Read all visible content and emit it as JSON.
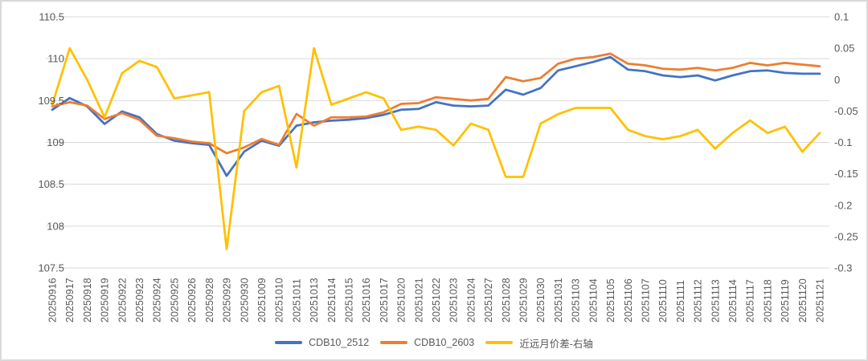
{
  "chart_data": {
    "type": "line",
    "categories": [
      "20250916",
      "20250917",
      "20250918",
      "20250919",
      "20250922",
      "20250923",
      "20250924",
      "20250925",
      "20250926",
      "20250928",
      "20250929",
      "20250930",
      "20251009",
      "20251010",
      "20251011",
      "20251013",
      "20251014",
      "20251015",
      "20251016",
      "20251017",
      "20251020",
      "20251021",
      "20251022",
      "20251023",
      "20251024",
      "20251027",
      "20251028",
      "20251029",
      "20251030",
      "20251031",
      "20251103",
      "20251104",
      "20251105",
      "20251106",
      "20251107",
      "20251110",
      "20251111",
      "20251112",
      "20251113",
      "20251114",
      "20251117",
      "20251118",
      "20251119",
      "20251120",
      "20251121"
    ],
    "series": [
      {
        "name": "CDB10_2512",
        "axis": "left",
        "color": "#4472C4",
        "values": [
          109.39,
          109.53,
          109.43,
          109.22,
          109.37,
          109.3,
          109.1,
          109.02,
          108.99,
          108.97,
          108.6,
          108.89,
          109.02,
          108.96,
          109.2,
          109.24,
          109.26,
          109.27,
          109.29,
          109.33,
          109.39,
          109.4,
          109.48,
          109.44,
          109.43,
          109.44,
          109.63,
          109.57,
          109.65,
          109.86,
          109.91,
          109.96,
          110.02,
          109.87,
          109.85,
          109.8,
          109.78,
          109.8,
          109.74,
          109.8,
          109.85,
          109.86,
          109.83,
          109.82,
          109.82
        ]
      },
      {
        "name": "CDB10_2603",
        "axis": "left",
        "color": "#ED7D31",
        "values": [
          109.43,
          109.48,
          109.44,
          109.28,
          109.35,
          109.27,
          109.08,
          109.05,
          109.01,
          108.99,
          108.87,
          108.94,
          109.04,
          108.97,
          109.34,
          109.2,
          109.3,
          109.3,
          109.31,
          109.36,
          109.46,
          109.47,
          109.54,
          109.52,
          109.5,
          109.52,
          109.78,
          109.73,
          109.77,
          109.94,
          110.0,
          110.02,
          110.06,
          109.94,
          109.92,
          109.88,
          109.87,
          109.89,
          109.86,
          109.89,
          109.95,
          109.92,
          109.95,
          109.93,
          109.91
        ]
      },
      {
        "name": "近远月价差-右轴",
        "axis": "right",
        "color": "#FFC000",
        "values": [
          -0.04,
          0.05,
          0.0,
          -0.06,
          0.01,
          0.03,
          0.02,
          -0.03,
          -0.025,
          -0.02,
          -0.27,
          -0.05,
          -0.02,
          -0.01,
          -0.14,
          0.05,
          -0.04,
          -0.03,
          -0.02,
          -0.03,
          -0.08,
          -0.075,
          -0.08,
          -0.105,
          -0.07,
          -0.08,
          -0.155,
          -0.155,
          -0.07,
          -0.055,
          -0.045,
          -0.045,
          -0.045,
          -0.08,
          -0.09,
          -0.095,
          -0.09,
          -0.08,
          -0.11,
          -0.085,
          -0.065,
          -0.085,
          -0.075,
          -0.115,
          -0.085
        ]
      }
    ],
    "left_axis": {
      "min": 107.5,
      "max": 110.5,
      "ticks": [
        "110.5",
        "110",
        "109.5",
        "109",
        "108.5",
        "108",
        "107.5"
      ]
    },
    "right_axis": {
      "min": -0.3,
      "max": 0.1,
      "ticks": [
        "0.1",
        "0.05",
        "0",
        "-0.05",
        "-0.1",
        "-0.15",
        "-0.2",
        "-0.25",
        "-0.3"
      ]
    },
    "grid": "horizontal",
    "legend_position": "bottom",
    "title": "",
    "colors": {
      "grid": "#D9D9D9",
      "axis_text": "#595959",
      "frame": "#D9D9D9",
      "background": "#FFFFFF"
    }
  }
}
